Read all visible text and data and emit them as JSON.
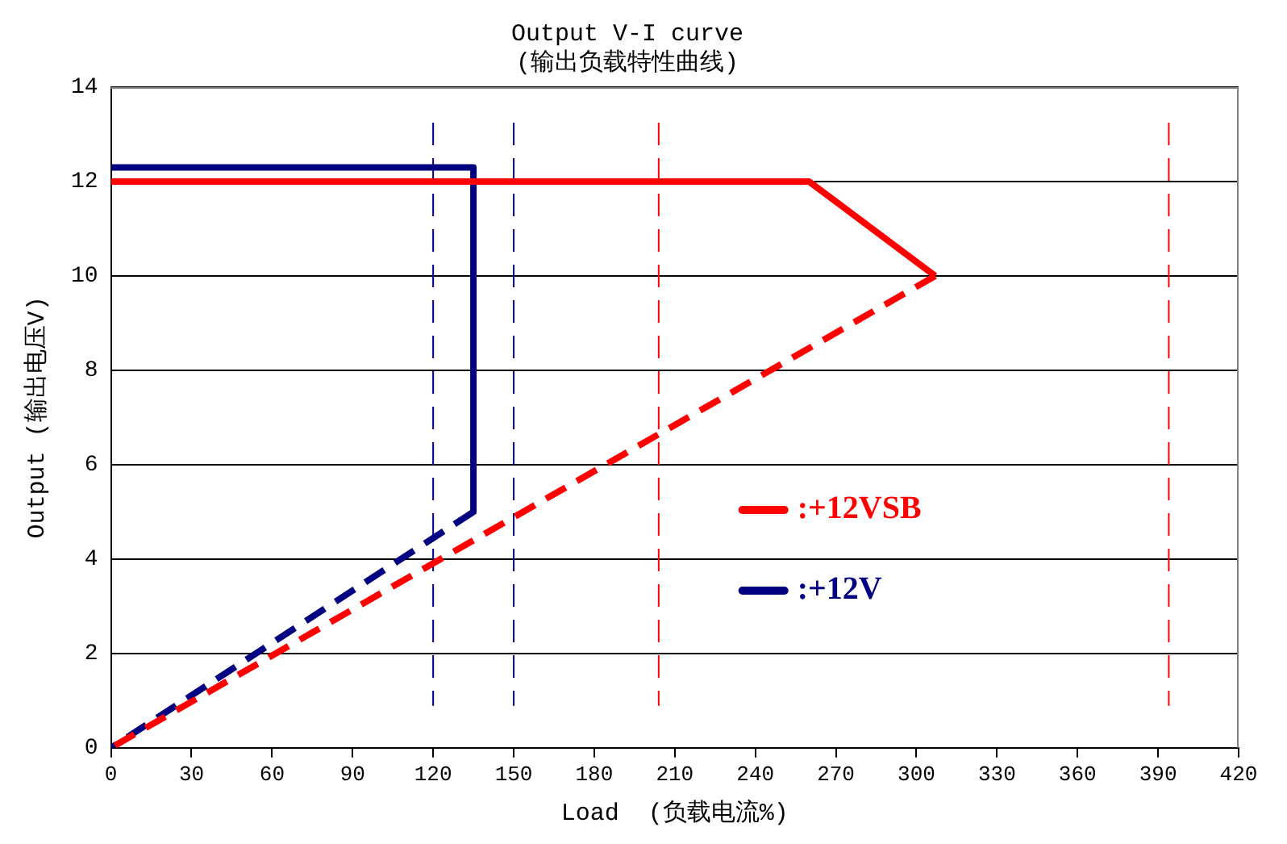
{
  "chart_data": {
    "type": "line",
    "title": "Output V-I curve",
    "subtitle": "(输出负载特性曲线)",
    "xlabel": "Load  (负载电流%)",
    "ylabel": "Output (输出电压V)",
    "xlim": [
      0,
      420
    ],
    "xticks": [
      0,
      30,
      60,
      90,
      120,
      150,
      180,
      210,
      240,
      270,
      300,
      330,
      360,
      390,
      420
    ],
    "ylim": [
      0,
      14
    ],
    "yticks": [
      0,
      2,
      4,
      6,
      8,
      10,
      12,
      14
    ],
    "grid": "y",
    "legend": "right",
    "marker": "none",
    "series": [
      {
        "name": ":+12VSB",
        "color": "#ff0000",
        "x": [
          0,
          260,
          307
        ],
        "values": [
          12,
          12,
          10
        ],
        "line_style": "solid"
      },
      {
        "color": "#ff0000",
        "x": [
          307,
          0
        ],
        "values": [
          10,
          0
        ],
        "line_style": "dashed"
      },
      {
        "name": ":+12V",
        "color": "#000080",
        "x": [
          0,
          135,
          135
        ],
        "values": [
          12.3,
          12.3,
          5
        ],
        "line_style": "solid"
      },
      {
        "color": "#000080",
        "x": [
          135,
          0
        ],
        "values": [
          5,
          0
        ],
        "line_style": "dashed"
      }
    ],
    "ref_lines": [
      {
        "axis": "x",
        "value": 120,
        "color": "#000080",
        "line_style": "dashed"
      },
      {
        "axis": "x",
        "value": 150,
        "color": "#000080",
        "line_style": "dashed"
      },
      {
        "axis": "x",
        "value": 204,
        "color": "#ff0000",
        "line_style": "dashed"
      },
      {
        "axis": "x",
        "value": 394,
        "color": "#ff0000",
        "line_style": "dashed"
      }
    ]
  }
}
